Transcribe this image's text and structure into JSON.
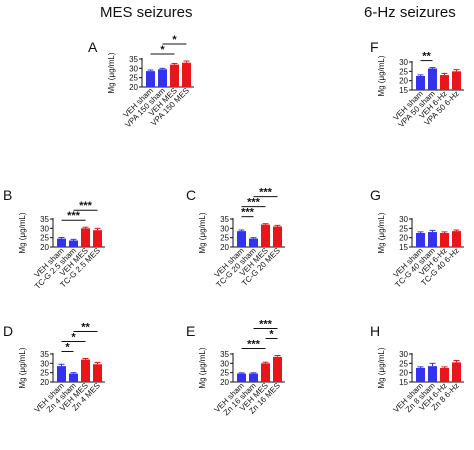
{
  "figure": {
    "section_titles": [
      "MES seizures",
      "6-Hz seizures"
    ]
  },
  "colors": {
    "blue": "#3333ee",
    "red": "#e8151b",
    "axis": "#111111"
  },
  "chart_data": [
    {
      "panel": "A",
      "type": "bar",
      "ylabel": "Mg (μg/mL)",
      "ylim": [
        20,
        35
      ],
      "yticks": [
        20,
        25,
        30,
        35
      ],
      "categories": [
        "VEH sham",
        "VPA 150 sham",
        "VEH MES",
        "VPA 150 MES"
      ],
      "bar_colors": [
        "blue",
        "blue",
        "red",
        "red"
      ],
      "values": [
        28.5,
        29.5,
        32.0,
        33.0
      ],
      "errors": [
        0.6,
        0.5,
        0.6,
        0.9
      ],
      "significance": [
        {
          "from": 0,
          "to": 2,
          "label": "*"
        },
        {
          "from": 1,
          "to": 3,
          "label": "*"
        }
      ]
    },
    {
      "panel": "B",
      "type": "bar",
      "ylabel": "Mg (μg/mL)",
      "ylim": [
        20,
        35
      ],
      "yticks": [
        20,
        25,
        30,
        35
      ],
      "categories": [
        "VEH sham",
        "TC-G 2.5 sham",
        "VEH MES",
        "TC-G 2.5 MES"
      ],
      "bar_colors": [
        "blue",
        "blue",
        "red",
        "red"
      ],
      "values": [
        24.5,
        23.5,
        30.0,
        29.0
      ],
      "errors": [
        0.6,
        0.6,
        0.6,
        1.0
      ],
      "significance": [
        {
          "from": 0,
          "to": 2,
          "label": "***"
        },
        {
          "from": 1,
          "to": 3,
          "label": "***"
        }
      ]
    },
    {
      "panel": "C",
      "type": "bar",
      "ylabel": "Mg (μg/mL)",
      "ylim": [
        20,
        35
      ],
      "yticks": [
        20,
        25,
        30,
        35
      ],
      "categories": [
        "VEH sham",
        "TC-G 20 sham",
        "VEH MES",
        "TC-G 20 MES"
      ],
      "bar_colors": [
        "blue",
        "blue",
        "red",
        "red"
      ],
      "values": [
        28.5,
        24.5,
        32.0,
        31.0
      ],
      "errors": [
        0.6,
        0.5,
        0.5,
        0.6
      ],
      "significance": [
        {
          "from": 0,
          "to": 1,
          "label": "***"
        },
        {
          "from": 0,
          "to": 2,
          "label": "***"
        },
        {
          "from": 1,
          "to": 3,
          "label": "***"
        }
      ]
    },
    {
      "panel": "D",
      "type": "bar",
      "ylabel": "Mg (μg/mL)",
      "ylim": [
        20,
        35
      ],
      "yticks": [
        20,
        25,
        30,
        35
      ],
      "categories": [
        "VEH sham",
        "Zn 4 sham",
        "VEH MES",
        "Zn 4 MES"
      ],
      "bar_colors": [
        "blue",
        "blue",
        "red",
        "red"
      ],
      "values": [
        28.5,
        24.5,
        32.0,
        29.5
      ],
      "errors": [
        1.0,
        0.5,
        0.6,
        1.0
      ],
      "significance": [
        {
          "from": 0,
          "to": 1,
          "label": "*"
        },
        {
          "from": 0,
          "to": 2,
          "label": "*"
        },
        {
          "from": 1,
          "to": 3,
          "label": "**"
        }
      ]
    },
    {
      "panel": "E",
      "type": "bar",
      "ylabel": "Mg (μg/mL)",
      "ylim": [
        20,
        35
      ],
      "yticks": [
        20,
        25,
        30,
        35
      ],
      "categories": [
        "VEH sham",
        "Zn 16 sham",
        "VEH MES",
        "Zn 16 MES"
      ],
      "bar_colors": [
        "blue",
        "blue",
        "red",
        "red"
      ],
      "values": [
        24.5,
        24.5,
        30.0,
        33.5
      ],
      "errors": [
        0.4,
        0.4,
        0.6,
        0.7
      ],
      "significance": [
        {
          "from": 0,
          "to": 2,
          "label": "***"
        },
        {
          "from": 2,
          "to": 3,
          "label": "*"
        },
        {
          "from": 1,
          "to": 3,
          "label": "***"
        }
      ]
    },
    {
      "panel": "F",
      "type": "bar",
      "ylabel": "Mg (μg/mL)",
      "ylim": [
        15,
        30
      ],
      "yticks": [
        15,
        20,
        25,
        30
      ],
      "categories": [
        "VEH sham",
        "VPA 50 sham",
        "VEH 6-Hz",
        "VPA 50 6-Hz"
      ],
      "bar_colors": [
        "blue",
        "blue",
        "red",
        "red"
      ],
      "values": [
        22.5,
        26.5,
        23.0,
        25.0
      ],
      "errors": [
        0.6,
        0.5,
        0.9,
        0.9
      ],
      "significance": [
        {
          "from": 0,
          "to": 1,
          "label": "**"
        }
      ]
    },
    {
      "panel": "G",
      "type": "bar",
      "ylabel": "Mg (μg/mL)",
      "ylim": [
        15,
        30
      ],
      "yticks": [
        15,
        20,
        25,
        30
      ],
      "categories": [
        "VEH sham",
        "TC-G 40 sham",
        "VEH 6-Hz",
        "TC-G 40 6-Hz"
      ],
      "bar_colors": [
        "blue",
        "blue",
        "red",
        "red"
      ],
      "values": [
        22.5,
        23.0,
        22.5,
        23.5
      ],
      "errors": [
        0.6,
        0.9,
        0.6,
        0.6
      ],
      "significance": []
    },
    {
      "panel": "H",
      "type": "bar",
      "ylabel": "Mg (μg/mL)",
      "ylim": [
        15,
        30
      ],
      "yticks": [
        15,
        20,
        25,
        30
      ],
      "categories": [
        "VEH sham",
        "Zn 8 sham",
        "VEH 6-Hz",
        "Zn 8 6-Hz"
      ],
      "bar_colors": [
        "blue",
        "blue",
        "red",
        "red"
      ],
      "values": [
        22.5,
        23.5,
        22.5,
        25.5
      ],
      "errors": [
        0.6,
        1.5,
        0.6,
        1.0
      ],
      "significance": []
    }
  ]
}
